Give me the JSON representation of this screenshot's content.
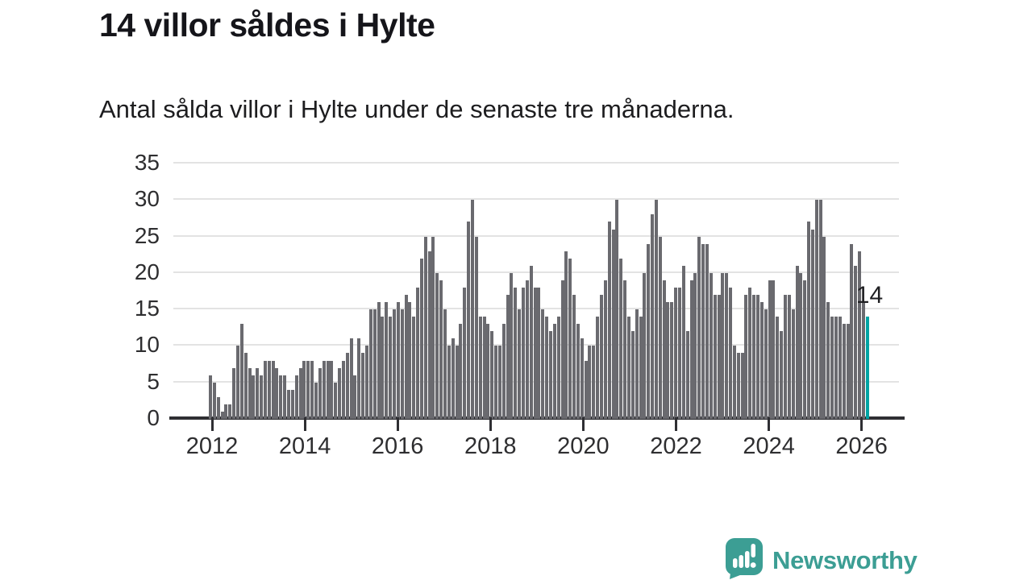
{
  "header": {
    "title": "14 villor såldes i Hylte",
    "subtitle": "Antal sålda villor i Hylte under de senaste tre månaderna."
  },
  "chart_data": {
    "type": "bar",
    "title": "14 villor såldes i Hylte",
    "subtitle": "Antal sålda villor i Hylte under de senaste tre månaderna.",
    "x_start": "2012-01",
    "x_end": "2026-01",
    "points_per_year": 12,
    "values": [
      6,
      5,
      3,
      1,
      2,
      2,
      7,
      10,
      13,
      9,
      7,
      6,
      7,
      6,
      8,
      8,
      8,
      7,
      6,
      6,
      4,
      4,
      6,
      7,
      8,
      8,
      8,
      5,
      7,
      8,
      8,
      8,
      5,
      7,
      8,
      9,
      11,
      6,
      11,
      9,
      10,
      15,
      15,
      16,
      14,
      16,
      14,
      15,
      16,
      15,
      17,
      16,
      14,
      18,
      22,
      25,
      23,
      25,
      20,
      19,
      15,
      10,
      11,
      10,
      13,
      18,
      27,
      30,
      25,
      14,
      14,
      13,
      12,
      10,
      10,
      13,
      17,
      20,
      18,
      15,
      18,
      19,
      21,
      18,
      18,
      15,
      14,
      12,
      13,
      14,
      19,
      23,
      22,
      17,
      13,
      11,
      8,
      10,
      10,
      14,
      17,
      19,
      27,
      26,
      30,
      22,
      19,
      14,
      12,
      15,
      14,
      20,
      24,
      28,
      30,
      25,
      19,
      16,
      16,
      18,
      18,
      21,
      12,
      19,
      20,
      25,
      24,
      24,
      20,
      17,
      17,
      20,
      20,
      18,
      10,
      9,
      9,
      17,
      18,
      17,
      17,
      16,
      15,
      19,
      19,
      14,
      12,
      17,
      17,
      15,
      21,
      20,
      19,
      27,
      26,
      30,
      30,
      25,
      16,
      14,
      14,
      14,
      13,
      13,
      24,
      21,
      23,
      16,
      14
    ],
    "highlight_last": true,
    "highlight_label": "14",
    "ylim": [
      0,
      35
    ],
    "yticks": [
      "0",
      "5",
      "10",
      "15",
      "20",
      "25",
      "30",
      "35"
    ],
    "xticks": [
      "2012",
      "2014",
      "2016",
      "2018",
      "2020",
      "2022",
      "2024",
      "2026"
    ],
    "grid": true,
    "legend_position": "none",
    "bar_color": "#6a6a6f",
    "highlight_color": "#00a3a3",
    "grid_color": "#e3e3e3",
    "axis_color": "#2f2f33"
  },
  "footer": {
    "brand": "Newsworthy",
    "brand_color": "#3c9e94",
    "logo_icon": "newsworthy-bubble-chart"
  }
}
